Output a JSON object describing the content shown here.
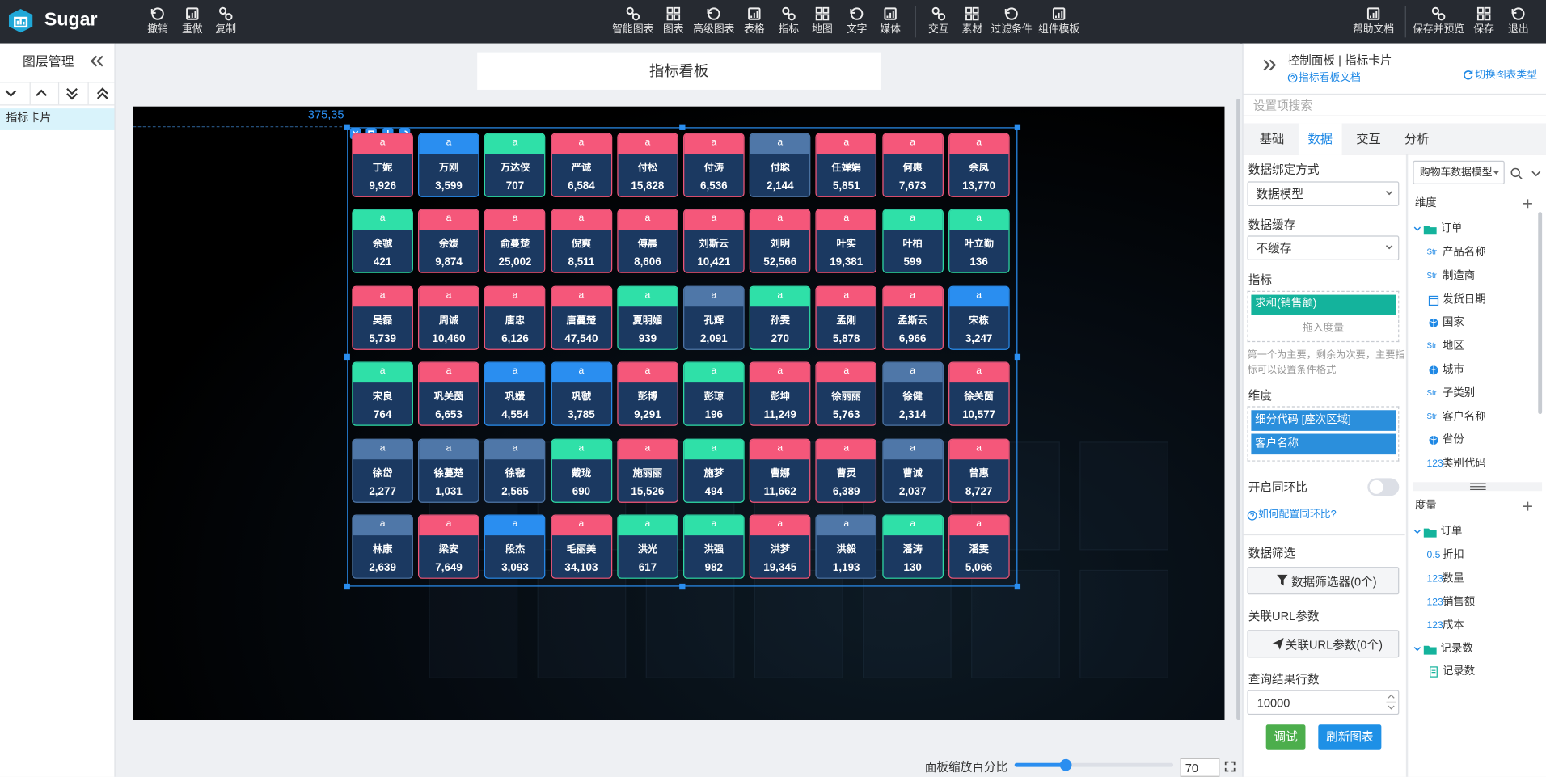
{
  "toolbar": {
    "brand": "Sugar",
    "left": [
      "撤销",
      "重做",
      "复制"
    ],
    "center": [
      "智能图表",
      "图表",
      "高级图表",
      "表格",
      "指标",
      "地图",
      "文字",
      "媒体",
      "交互",
      "素材",
      "过滤条件",
      "组件模板"
    ],
    "right": [
      "帮助文档",
      "保存并预览",
      "保存",
      "退出"
    ]
  },
  "layers": {
    "title": "图层管理",
    "items": [
      "指标卡片"
    ]
  },
  "canvas": {
    "title": "指标看板",
    "position": "375,35",
    "cards": [
      {
        "tag": "a",
        "name": "丁妮",
        "value": "9,926",
        "color": "#f5577a"
      },
      {
        "tag": "a",
        "name": "万刚",
        "value": "3,599",
        "color": "#2a8ef0"
      },
      {
        "tag": "a",
        "name": "万达侠",
        "value": "707",
        "color": "#2fe0a8"
      },
      {
        "tag": "a",
        "name": "严诚",
        "value": "6,584",
        "color": "#f5577a"
      },
      {
        "tag": "a",
        "name": "付松",
        "value": "15,828",
        "color": "#f5577a"
      },
      {
        "tag": "a",
        "name": "付涛",
        "value": "6,536",
        "color": "#f5577a"
      },
      {
        "tag": "a",
        "name": "付聪",
        "value": "2,144",
        "color": "#4f77a8"
      },
      {
        "tag": "a",
        "name": "任婵娟",
        "value": "5,851",
        "color": "#f5577a"
      },
      {
        "tag": "a",
        "name": "何惠",
        "value": "7,673",
        "color": "#f5577a"
      },
      {
        "tag": "a",
        "name": "余凤",
        "value": "13,770",
        "color": "#f5577a"
      },
      {
        "tag": "a",
        "name": "余虢",
        "value": "421",
        "color": "#2fe0a8"
      },
      {
        "tag": "a",
        "name": "余媛",
        "value": "9,874",
        "color": "#f5577a"
      },
      {
        "tag": "a",
        "name": "俞蔓楚",
        "value": "25,002",
        "color": "#f5577a"
      },
      {
        "tag": "a",
        "name": "倪爽",
        "value": "8,511",
        "color": "#f5577a"
      },
      {
        "tag": "a",
        "name": "傅晨",
        "value": "8,606",
        "color": "#f5577a"
      },
      {
        "tag": "a",
        "name": "刘斯云",
        "value": "10,421",
        "color": "#f5577a"
      },
      {
        "tag": "a",
        "name": "刘明",
        "value": "52,566",
        "color": "#f5577a"
      },
      {
        "tag": "a",
        "name": "叶实",
        "value": "19,381",
        "color": "#f5577a"
      },
      {
        "tag": "a",
        "name": "叶柏",
        "value": "599",
        "color": "#2fe0a8"
      },
      {
        "tag": "a",
        "name": "叶立勤",
        "value": "136",
        "color": "#2fe0a8"
      },
      {
        "tag": "a",
        "name": "吴磊",
        "value": "5,739",
        "color": "#f5577a"
      },
      {
        "tag": "a",
        "name": "周诚",
        "value": "10,460",
        "color": "#f5577a"
      },
      {
        "tag": "a",
        "name": "唐忠",
        "value": "6,126",
        "color": "#f5577a"
      },
      {
        "tag": "a",
        "name": "唐蔓楚",
        "value": "47,540",
        "color": "#f5577a"
      },
      {
        "tag": "a",
        "name": "夏明媚",
        "value": "939",
        "color": "#2fe0a8"
      },
      {
        "tag": "a",
        "name": "孔辉",
        "value": "2,091",
        "color": "#4f77a8"
      },
      {
        "tag": "a",
        "name": "孙雯",
        "value": "270",
        "color": "#2fe0a8"
      },
      {
        "tag": "a",
        "name": "孟刚",
        "value": "5,878",
        "color": "#f5577a"
      },
      {
        "tag": "a",
        "name": "孟斯云",
        "value": "6,966",
        "color": "#f5577a"
      },
      {
        "tag": "a",
        "name": "宋栋",
        "value": "3,247",
        "color": "#2a8ef0"
      },
      {
        "tag": "a",
        "name": "宋良",
        "value": "764",
        "color": "#2fe0a8"
      },
      {
        "tag": "a",
        "name": "巩关茵",
        "value": "6,653",
        "color": "#f5577a"
      },
      {
        "tag": "a",
        "name": "巩媛",
        "value": "4,554",
        "color": "#2a8ef0"
      },
      {
        "tag": "a",
        "name": "巩虢",
        "value": "3,785",
        "color": "#2a8ef0"
      },
      {
        "tag": "a",
        "name": "彭博",
        "value": "9,291",
        "color": "#f5577a"
      },
      {
        "tag": "a",
        "name": "彭琼",
        "value": "196",
        "color": "#2fe0a8"
      },
      {
        "tag": "a",
        "name": "彭坤",
        "value": "11,249",
        "color": "#f5577a"
      },
      {
        "tag": "a",
        "name": "徐丽丽",
        "value": "5,763",
        "color": "#f5577a"
      },
      {
        "tag": "a",
        "name": "徐健",
        "value": "2,314",
        "color": "#4f77a8"
      },
      {
        "tag": "a",
        "name": "徐关茵",
        "value": "10,577",
        "color": "#f5577a"
      },
      {
        "tag": "a",
        "name": "徐岱",
        "value": "2,277",
        "color": "#4f77a8"
      },
      {
        "tag": "a",
        "name": "徐蔓楚",
        "value": "1,031",
        "color": "#4f77a8"
      },
      {
        "tag": "a",
        "name": "徐虢",
        "value": "2,565",
        "color": "#4f77a8"
      },
      {
        "tag": "a",
        "name": "戴珑",
        "value": "690",
        "color": "#2fe0a8"
      },
      {
        "tag": "a",
        "name": "施丽丽",
        "value": "15,526",
        "color": "#f5577a"
      },
      {
        "tag": "a",
        "name": "施梦",
        "value": "494",
        "color": "#2fe0a8"
      },
      {
        "tag": "a",
        "name": "曹娜",
        "value": "11,662",
        "color": "#f5577a"
      },
      {
        "tag": "a",
        "name": "曹灵",
        "value": "6,389",
        "color": "#f5577a"
      },
      {
        "tag": "a",
        "name": "曹诚",
        "value": "2,037",
        "color": "#4f77a8"
      },
      {
        "tag": "a",
        "name": "曾惠",
        "value": "8,727",
        "color": "#f5577a"
      },
      {
        "tag": "a",
        "name": "林康",
        "value": "2,639",
        "color": "#4f77a8"
      },
      {
        "tag": "a",
        "name": "梁安",
        "value": "7,649",
        "color": "#f5577a"
      },
      {
        "tag": "a",
        "name": "段杰",
        "value": "3,093",
        "color": "#2a8ef0"
      },
      {
        "tag": "a",
        "name": "毛丽美",
        "value": "34,103",
        "color": "#f5577a"
      },
      {
        "tag": "a",
        "name": "洪光",
        "value": "617",
        "color": "#2fe0a8"
      },
      {
        "tag": "a",
        "name": "洪强",
        "value": "982",
        "color": "#2fe0a8"
      },
      {
        "tag": "a",
        "name": "洪梦",
        "value": "19,345",
        "color": "#f5577a"
      },
      {
        "tag": "a",
        "name": "洪毅",
        "value": "1,193",
        "color": "#4f77a8"
      },
      {
        "tag": "a",
        "name": "潘涛",
        "value": "130",
        "color": "#2fe0a8"
      },
      {
        "tag": "a",
        "name": "潘雯",
        "value": "5,066",
        "color": "#f5577a"
      }
    ]
  },
  "zoom": {
    "label": "面板缩放百分比",
    "value": "70"
  },
  "panel": {
    "title": "控制面板 | 指标卡片",
    "doc_link": "指标看板文档",
    "switch": "切换图表类型",
    "search_placeholder": "设置项搜索",
    "tabs": [
      "基础",
      "数据",
      "交互",
      "分析"
    ],
    "active_tab": 1,
    "bind_label": "数据绑定方式",
    "bind_value": "数据模型",
    "cache_label": "数据缓存",
    "cache_value": "不缓存",
    "metric_label": "指标",
    "metric_chip": "求和(销售额)",
    "metric_drop": "拖入度量",
    "hint": "第一个为主要，剩余为次要，主要指标可以设置条件格式",
    "dim_label": "维度",
    "dim_chips": [
      "细分代码 [座次区域]",
      "客户名称"
    ],
    "compare_label": "开启同环比",
    "compare_link": "如何配置同环比?",
    "filter_label": "数据筛选",
    "filter_button": "数据筛选器(0个)",
    "url_label": "关联URL参数",
    "url_button": "关联URL参数(0个)",
    "rows_label": "查询结果行数",
    "rows_value": "10000",
    "debug_button": "调试",
    "refresh_button": "刷新图表"
  },
  "fields": {
    "model": "购物车数据模型",
    "dim_title": "维度",
    "dim_group": "订单",
    "dims": [
      {
        "icon": "Str",
        "label": "产品名称"
      },
      {
        "icon": "Str",
        "label": "制造商"
      },
      {
        "kind": "date",
        "label": "发货日期"
      },
      {
        "kind": "geo",
        "label": "国家"
      },
      {
        "icon": "Str",
        "label": "地区"
      },
      {
        "kind": "geo",
        "label": "城市"
      },
      {
        "icon": "Str",
        "label": "子类别"
      },
      {
        "icon": "Str",
        "label": "客户名称"
      },
      {
        "kind": "geo",
        "label": "省份"
      },
      {
        "icon": "123",
        "label": "类别代码"
      }
    ],
    "measure_title": "度量",
    "measure_group": "订单",
    "measures": [
      {
        "icon": "0.5",
        "label": "折扣"
      },
      {
        "icon": "123",
        "label": "数量"
      },
      {
        "icon": "123",
        "label": "销售额"
      },
      {
        "icon": "123",
        "label": "成本"
      }
    ],
    "record_group": "记录数",
    "records": [
      {
        "kind": "record",
        "label": "记录数"
      }
    ]
  }
}
